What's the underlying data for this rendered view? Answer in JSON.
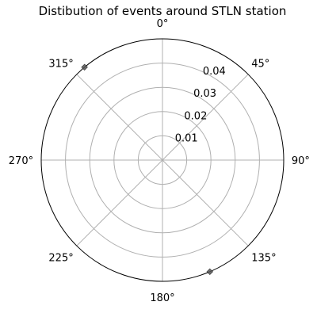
{
  "chart_data": {
    "type": "scatter",
    "projection": "polar",
    "title": "Distibution of events around STLN station",
    "theta_zero": "top",
    "theta_direction": "clockwise",
    "theta_tick_labels": [
      "0°",
      "45°",
      "90°",
      "135°",
      "180°",
      "225°",
      "270°",
      "315°"
    ],
    "theta_ticks_deg": [
      0,
      45,
      90,
      135,
      180,
      225,
      270,
      315
    ],
    "r_ticks": [
      0.01,
      0.02,
      0.03,
      0.04
    ],
    "r_tick_labels": [
      "0.01",
      "0.02",
      "0.03",
      "0.04"
    ],
    "r_lim": [
      0,
      0.05
    ],
    "grid": true,
    "marker": "diamond",
    "colors": {
      "marker": "#555555",
      "grid": "#b0b0b0",
      "frame": "#000000"
    },
    "points": [
      {
        "theta_deg": 320,
        "r": 0.05
      },
      {
        "theta_deg": 157,
        "r": 0.05
      }
    ]
  }
}
